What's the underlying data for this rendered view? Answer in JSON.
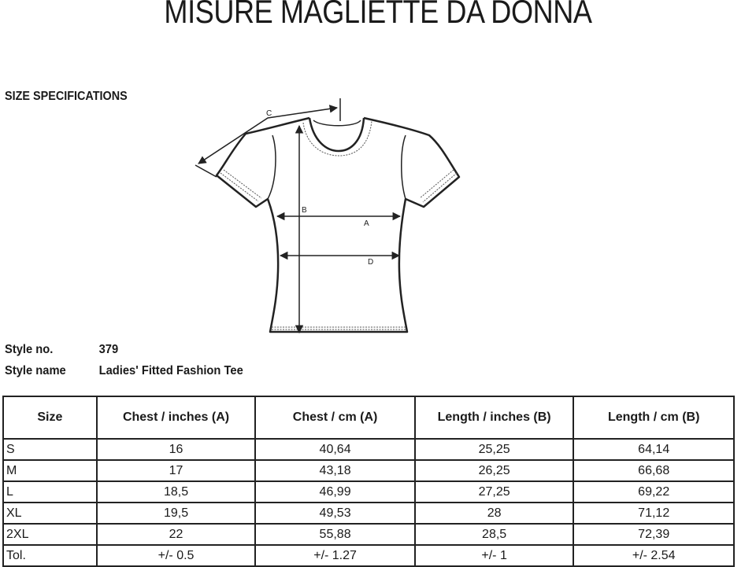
{
  "title": "MISURE MAGLIETTE DA DONNA",
  "section_heading": "SIZE SPECIFICATIONS",
  "diagram": {
    "labels": {
      "A": "A",
      "B": "B",
      "C": "C",
      "D": "D"
    }
  },
  "style": {
    "number_label": "Style no.",
    "number": "379",
    "name_label": "Style name",
    "name": "Ladies' Fitted Fashion Tee"
  },
  "table": {
    "headers": [
      "Size",
      "Chest / inches (A)",
      "Chest / cm (A)",
      "Length / inches (B)",
      "Length / cm (B)"
    ],
    "rows": [
      [
        "S",
        "16",
        "40,64",
        "25,25",
        "64,14"
      ],
      [
        "M",
        "17",
        "43,18",
        "26,25",
        "66,68"
      ],
      [
        "L",
        "18,5",
        "46,99",
        "27,25",
        "69,22"
      ],
      [
        "XL",
        "19,5",
        "49,53",
        "28",
        "71,12"
      ],
      [
        "2XL",
        "22",
        "55,88",
        "28,5",
        "72,39"
      ],
      [
        "Tol.",
        "+/- 0.5",
        "+/- 1.27",
        "+/- 1",
        "+/- 2.54"
      ]
    ]
  }
}
